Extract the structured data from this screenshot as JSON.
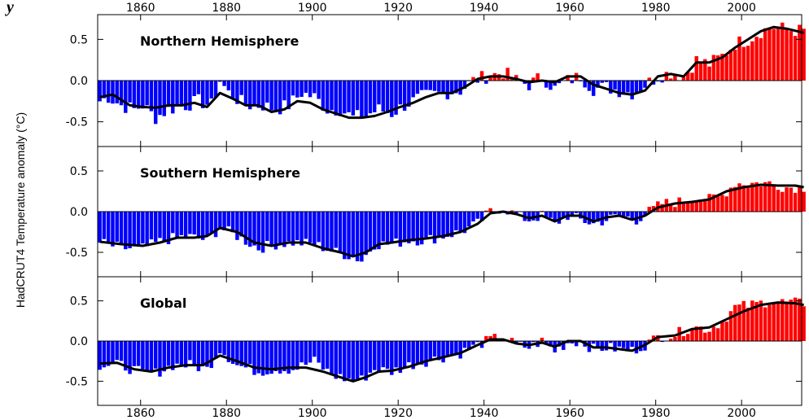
{
  "caption_fragment": "y",
  "y_title": "HadCRUT4 Temperature anomaly (°C)",
  "colors": {
    "positive": "#ff0000",
    "negative": "#0000ff",
    "smooth": "#000000"
  },
  "chart_data": {
    "type": "bar",
    "ylabel": "HadCRUT4 Temperature anomaly (°C)",
    "x_ticks": [
      1860,
      1880,
      1900,
      1920,
      1940,
      1960,
      1980,
      2000
    ],
    "xlim": [
      1850,
      2014
    ],
    "y_ticks": [
      -0.5,
      0.0,
      0.5
    ],
    "panels": [
      {
        "title": "Northern Hemisphere",
        "ylim": [
          -0.8,
          0.8
        ],
        "anchors": [
          [
            1850,
            -0.25
          ],
          [
            1852,
            -0.2
          ],
          [
            1855,
            -0.3
          ],
          [
            1858,
            -0.35
          ],
          [
            1860,
            -0.3
          ],
          [
            1863,
            -0.45
          ],
          [
            1866,
            -0.35
          ],
          [
            1870,
            -0.3
          ],
          [
            1873,
            -0.25
          ],
          [
            1876,
            -0.3
          ],
          [
            1878,
            0.0
          ],
          [
            1880,
            -0.15
          ],
          [
            1884,
            -0.3
          ],
          [
            1888,
            -0.3
          ],
          [
            1891,
            -0.35
          ],
          [
            1894,
            -0.3
          ],
          [
            1897,
            -0.15
          ],
          [
            1900,
            -0.2
          ],
          [
            1903,
            -0.35
          ],
          [
            1906,
            -0.35
          ],
          [
            1909,
            -0.45
          ],
          [
            1912,
            -0.42
          ],
          [
            1915,
            -0.35
          ],
          [
            1918,
            -0.4
          ],
          [
            1921,
            -0.3
          ],
          [
            1925,
            -0.2
          ],
          [
            1930,
            -0.15
          ],
          [
            1934,
            -0.12
          ],
          [
            1937,
            0.0
          ],
          [
            1940,
            0.05
          ],
          [
            1944,
            0.1
          ],
          [
            1947,
            0.0
          ],
          [
            1950,
            -0.05
          ],
          [
            1953,
            0.05
          ],
          [
            1956,
            -0.1
          ],
          [
            1959,
            0.0
          ],
          [
            1962,
            0.05
          ],
          [
            1965,
            -0.1
          ],
          [
            1968,
            -0.08
          ],
          [
            1971,
            -0.12
          ],
          [
            1974,
            -0.15
          ],
          [
            1977,
            -0.05
          ],
          [
            1980,
            0.05
          ],
          [
            1983,
            0.1
          ],
          [
            1986,
            0.05
          ],
          [
            1989,
            0.25
          ],
          [
            1992,
            0.2
          ],
          [
            1995,
            0.3
          ],
          [
            1998,
            0.45
          ],
          [
            2001,
            0.5
          ],
          [
            2004,
            0.6
          ],
          [
            2007,
            0.65
          ],
          [
            2010,
            0.62
          ],
          [
            2014,
            0.6
          ]
        ],
        "noise": 0.09,
        "smooth": [
          [
            1850,
            -0.2
          ],
          [
            1853,
            -0.17
          ],
          [
            1857,
            -0.3
          ],
          [
            1860,
            -0.32
          ],
          [
            1863,
            -0.33
          ],
          [
            1866,
            -0.3
          ],
          [
            1869,
            -0.3
          ],
          [
            1872,
            -0.27
          ],
          [
            1875,
            -0.32
          ],
          [
            1878,
            -0.15
          ],
          [
            1881,
            -0.22
          ],
          [
            1884,
            -0.3
          ],
          [
            1887,
            -0.3
          ],
          [
            1890,
            -0.38
          ],
          [
            1893,
            -0.35
          ],
          [
            1896,
            -0.25
          ],
          [
            1899,
            -0.27
          ],
          [
            1902,
            -0.35
          ],
          [
            1905,
            -0.4
          ],
          [
            1908,
            -0.45
          ],
          [
            1911,
            -0.45
          ],
          [
            1914,
            -0.43
          ],
          [
            1917,
            -0.38
          ],
          [
            1920,
            -0.32
          ],
          [
            1923,
            -0.27
          ],
          [
            1926,
            -0.2
          ],
          [
            1929,
            -0.15
          ],
          [
            1932,
            -0.15
          ],
          [
            1935,
            -0.08
          ],
          [
            1938,
            0.02
          ],
          [
            1941,
            0.05
          ],
          [
            1944,
            0.05
          ],
          [
            1947,
            0.02
          ],
          [
            1950,
            -0.02
          ],
          [
            1953,
            0.0
          ],
          [
            1956,
            -0.02
          ],
          [
            1959,
            0.05
          ],
          [
            1962,
            0.05
          ],
          [
            1965,
            -0.05
          ],
          [
            1968,
            -0.1
          ],
          [
            1971,
            -0.15
          ],
          [
            1974,
            -0.17
          ],
          [
            1977,
            -0.12
          ],
          [
            1980,
            0.05
          ],
          [
            1983,
            0.08
          ],
          [
            1986,
            0.05
          ],
          [
            1989,
            0.22
          ],
          [
            1992,
            0.22
          ],
          [
            1995,
            0.28
          ],
          [
            1998,
            0.4
          ],
          [
            2001,
            0.5
          ],
          [
            2004,
            0.6
          ],
          [
            2007,
            0.65
          ],
          [
            2010,
            0.63
          ],
          [
            2014,
            0.58
          ]
        ]
      },
      {
        "title": "Southern Hemisphere",
        "ylim": [
          -0.8,
          0.8
        ],
        "anchors": [
          [
            1850,
            -0.38
          ],
          [
            1855,
            -0.45
          ],
          [
            1860,
            -0.45
          ],
          [
            1865,
            -0.35
          ],
          [
            1870,
            -0.3
          ],
          [
            1875,
            -0.35
          ],
          [
            1878,
            -0.2
          ],
          [
            1882,
            -0.3
          ],
          [
            1887,
            -0.45
          ],
          [
            1891,
            -0.4
          ],
          [
            1895,
            -0.38
          ],
          [
            1900,
            -0.4
          ],
          [
            1905,
            -0.5
          ],
          [
            1909,
            -0.55
          ],
          [
            1911,
            -0.6
          ],
          [
            1914,
            -0.4
          ],
          [
            1918,
            -0.4
          ],
          [
            1922,
            -0.35
          ],
          [
            1926,
            -0.35
          ],
          [
            1930,
            -0.3
          ],
          [
            1934,
            -0.25
          ],
          [
            1938,
            -0.15
          ],
          [
            1941,
            0.0
          ],
          [
            1944,
            0.05
          ],
          [
            1947,
            -0.05
          ],
          [
            1950,
            -0.1
          ],
          [
            1953,
            -0.05
          ],
          [
            1956,
            -0.15
          ],
          [
            1959,
            -0.05
          ],
          [
            1962,
            -0.1
          ],
          [
            1965,
            -0.15
          ],
          [
            1968,
            -0.1
          ],
          [
            1971,
            -0.05
          ],
          [
            1975,
            -0.1
          ],
          [
            1978,
            0.0
          ],
          [
            1981,
            0.1
          ],
          [
            1985,
            0.12
          ],
          [
            1989,
            0.18
          ],
          [
            1992,
            0.15
          ],
          [
            1995,
            0.2
          ],
          [
            1998,
            0.35
          ],
          [
            2002,
            0.35
          ],
          [
            2006,
            0.35
          ],
          [
            2010,
            0.3
          ],
          [
            2014,
            0.3
          ]
        ],
        "noise": 0.07,
        "smooth": [
          [
            1850,
            -0.37
          ],
          [
            1855,
            -0.4
          ],
          [
            1860,
            -0.42
          ],
          [
            1864,
            -0.38
          ],
          [
            1868,
            -0.32
          ],
          [
            1872,
            -0.32
          ],
          [
            1875,
            -0.3
          ],
          [
            1878,
            -0.2
          ],
          [
            1882,
            -0.25
          ],
          [
            1886,
            -0.38
          ],
          [
            1890,
            -0.42
          ],
          [
            1894,
            -0.38
          ],
          [
            1898,
            -0.38
          ],
          [
            1902,
            -0.45
          ],
          [
            1906,
            -0.5
          ],
          [
            1909,
            -0.55
          ],
          [
            1912,
            -0.5
          ],
          [
            1915,
            -0.4
          ],
          [
            1918,
            -0.38
          ],
          [
            1922,
            -0.35
          ],
          [
            1926,
            -0.33
          ],
          [
            1930,
            -0.3
          ],
          [
            1934,
            -0.25
          ],
          [
            1938,
            -0.15
          ],
          [
            1941,
            -0.02
          ],
          [
            1944,
            0.0
          ],
          [
            1947,
            -0.03
          ],
          [
            1950,
            -0.08
          ],
          [
            1953,
            -0.05
          ],
          [
            1956,
            -0.12
          ],
          [
            1959,
            -0.05
          ],
          [
            1962,
            -0.05
          ],
          [
            1965,
            -0.12
          ],
          [
            1968,
            -0.07
          ],
          [
            1971,
            -0.05
          ],
          [
            1974,
            -0.1
          ],
          [
            1977,
            -0.05
          ],
          [
            1980,
            0.05
          ],
          [
            1984,
            0.1
          ],
          [
            1988,
            0.12
          ],
          [
            1992,
            0.15
          ],
          [
            1996,
            0.25
          ],
          [
            2000,
            0.3
          ],
          [
            2004,
            0.33
          ],
          [
            2008,
            0.32
          ],
          [
            2012,
            0.32
          ],
          [
            2014,
            0.3
          ]
        ]
      },
      {
        "title": "Global",
        "ylim": [
          -0.8,
          0.8
        ],
        "anchors": [
          [
            1850,
            -0.3
          ],
          [
            1855,
            -0.3
          ],
          [
            1860,
            -0.4
          ],
          [
            1863,
            -0.4
          ],
          [
            1867,
            -0.3
          ],
          [
            1871,
            -0.3
          ],
          [
            1875,
            -0.35
          ],
          [
            1878,
            -0.1
          ],
          [
            1882,
            -0.3
          ],
          [
            1887,
            -0.38
          ],
          [
            1891,
            -0.35
          ],
          [
            1895,
            -0.35
          ],
          [
            1900,
            -0.25
          ],
          [
            1904,
            -0.42
          ],
          [
            1908,
            -0.48
          ],
          [
            1911,
            -0.48
          ],
          [
            1914,
            -0.35
          ],
          [
            1918,
            -0.38
          ],
          [
            1922,
            -0.3
          ],
          [
            1926,
            -0.25
          ],
          [
            1930,
            -0.2
          ],
          [
            1934,
            -0.15
          ],
          [
            1938,
            -0.05
          ],
          [
            1941,
            0.02
          ],
          [
            1944,
            0.05
          ],
          [
            1947,
            -0.05
          ],
          [
            1950,
            -0.08
          ],
          [
            1953,
            0.0
          ],
          [
            1956,
            -0.12
          ],
          [
            1959,
            -0.02
          ],
          [
            1962,
            0.0
          ],
          [
            1965,
            -0.1
          ],
          [
            1968,
            -0.08
          ],
          [
            1971,
            -0.1
          ],
          [
            1974,
            -0.12
          ],
          [
            1977,
            -0.05
          ],
          [
            1980,
            0.05
          ],
          [
            1984,
            0.08
          ],
          [
            1988,
            0.18
          ],
          [
            1992,
            0.15
          ],
          [
            1995,
            0.25
          ],
          [
            1998,
            0.42
          ],
          [
            2002,
            0.45
          ],
          [
            2006,
            0.5
          ],
          [
            2010,
            0.48
          ],
          [
            2014,
            0.47
          ]
        ],
        "noise": 0.07,
        "smooth": [
          [
            1850,
            -0.28
          ],
          [
            1854,
            -0.27
          ],
          [
            1858,
            -0.35
          ],
          [
            1862,
            -0.38
          ],
          [
            1866,
            -0.33
          ],
          [
            1870,
            -0.3
          ],
          [
            1874,
            -0.3
          ],
          [
            1878,
            -0.18
          ],
          [
            1882,
            -0.25
          ],
          [
            1886,
            -0.33
          ],
          [
            1890,
            -0.35
          ],
          [
            1894,
            -0.33
          ],
          [
            1898,
            -0.33
          ],
          [
            1902,
            -0.38
          ],
          [
            1906,
            -0.45
          ],
          [
            1909,
            -0.5
          ],
          [
            1912,
            -0.45
          ],
          [
            1915,
            -0.38
          ],
          [
            1918,
            -0.37
          ],
          [
            1922,
            -0.32
          ],
          [
            1926,
            -0.25
          ],
          [
            1930,
            -0.2
          ],
          [
            1934,
            -0.15
          ],
          [
            1938,
            -0.05
          ],
          [
            1941,
            0.02
          ],
          [
            1944,
            0.02
          ],
          [
            1947,
            -0.03
          ],
          [
            1950,
            -0.05
          ],
          [
            1953,
            -0.02
          ],
          [
            1956,
            -0.07
          ],
          [
            1959,
            0.0
          ],
          [
            1962,
            0.0
          ],
          [
            1965,
            -0.08
          ],
          [
            1968,
            -0.08
          ],
          [
            1971,
            -0.1
          ],
          [
            1974,
            -0.12
          ],
          [
            1977,
            -0.05
          ],
          [
            1980,
            0.05
          ],
          [
            1984,
            0.07
          ],
          [
            1988,
            0.15
          ],
          [
            1992,
            0.17
          ],
          [
            1996,
            0.27
          ],
          [
            2000,
            0.37
          ],
          [
            2004,
            0.45
          ],
          [
            2008,
            0.48
          ],
          [
            2012,
            0.47
          ],
          [
            2014,
            0.45
          ]
        ]
      }
    ]
  }
}
